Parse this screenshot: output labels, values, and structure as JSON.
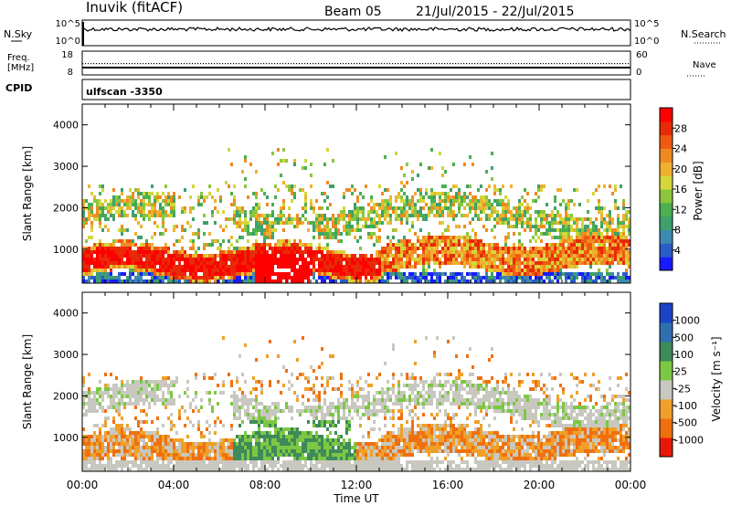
{
  "header": {
    "station": "Inuvik (fitACF)",
    "beam": "Beam 05",
    "date_range": "21/Jul/2015 - 22/Jul/2015"
  },
  "top_panels": {
    "nsky_label": "N.Sky",
    "nsky_ticks": [
      "10^5",
      "10^0"
    ],
    "nsearch_label": "N.Search",
    "nsearch_ticks": [
      "10^5",
      "10^0"
    ],
    "freq_label_1": "Freq.",
    "freq_label_2": "[MHz]",
    "freq_ticks": [
      "18",
      "8"
    ],
    "nave_label": "Nave",
    "nave_ticks": [
      "60",
      "0"
    ],
    "cpid_label": "CPID",
    "cpid_value": "ulfscan -3350"
  },
  "chart_data": [
    {
      "type": "heatmap",
      "title": "",
      "ylabel": "Slant Range [km]",
      "xlabel": "",
      "x_ticks": [
        "00:00",
        "04:00",
        "08:00",
        "12:00",
        "16:00",
        "20:00",
        "00:00"
      ],
      "y_ticks": [
        "1000",
        "2000",
        "3000",
        "4000"
      ],
      "ylim": [
        180,
        4500
      ],
      "xlim_hours": [
        0,
        24
      ],
      "colorbar": {
        "label": "Power [dB]",
        "ticks": [
          "4",
          "8",
          "12",
          "16",
          "20",
          "24",
          "28"
        ],
        "range": [
          0,
          30
        ],
        "colors": [
          "#1a1aff",
          "#2b5cc8",
          "#3d8ab0",
          "#3ea06a",
          "#4caf50",
          "#8cc63e",
          "#d4d63a",
          "#f0b030",
          "#f08a20",
          "#f05a10",
          "#e82a08",
          "#ff0000"
        ]
      },
      "dominant_feature": "Strong echoes (24-30 dB) between 500 and 1200 km throughout the day, weaker echoes up to 2400 km"
    },
    {
      "type": "heatmap",
      "title": "",
      "ylabel": "Slant Range [km]",
      "xlabel": "Time UT",
      "x_ticks": [
        "00:00",
        "04:00",
        "08:00",
        "12:00",
        "16:00",
        "20:00",
        "00:00"
      ],
      "y_ticks": [
        "1000",
        "2000",
        "3000",
        "4000"
      ],
      "ylim": [
        180,
        4500
      ],
      "xlim_hours": [
        0,
        24
      ],
      "colorbar": {
        "label": "Velocity [m s⁻¹]",
        "ticks": [
          "1000",
          "500",
          "100",
          "25",
          "-25",
          "-100",
          "-500",
          "-1000"
        ],
        "colors": [
          "#1a44c8",
          "#2f6fb0",
          "#3e8a5a",
          "#7cc843",
          "#c8c8c0",
          "#f0a028",
          "#f07010",
          "#e81808"
        ]
      },
      "dominant_feature": "Ground scatter (grey) and negative velocities (orange) across most of the interval; positive velocities (green) near 07:00-12:00"
    }
  ]
}
